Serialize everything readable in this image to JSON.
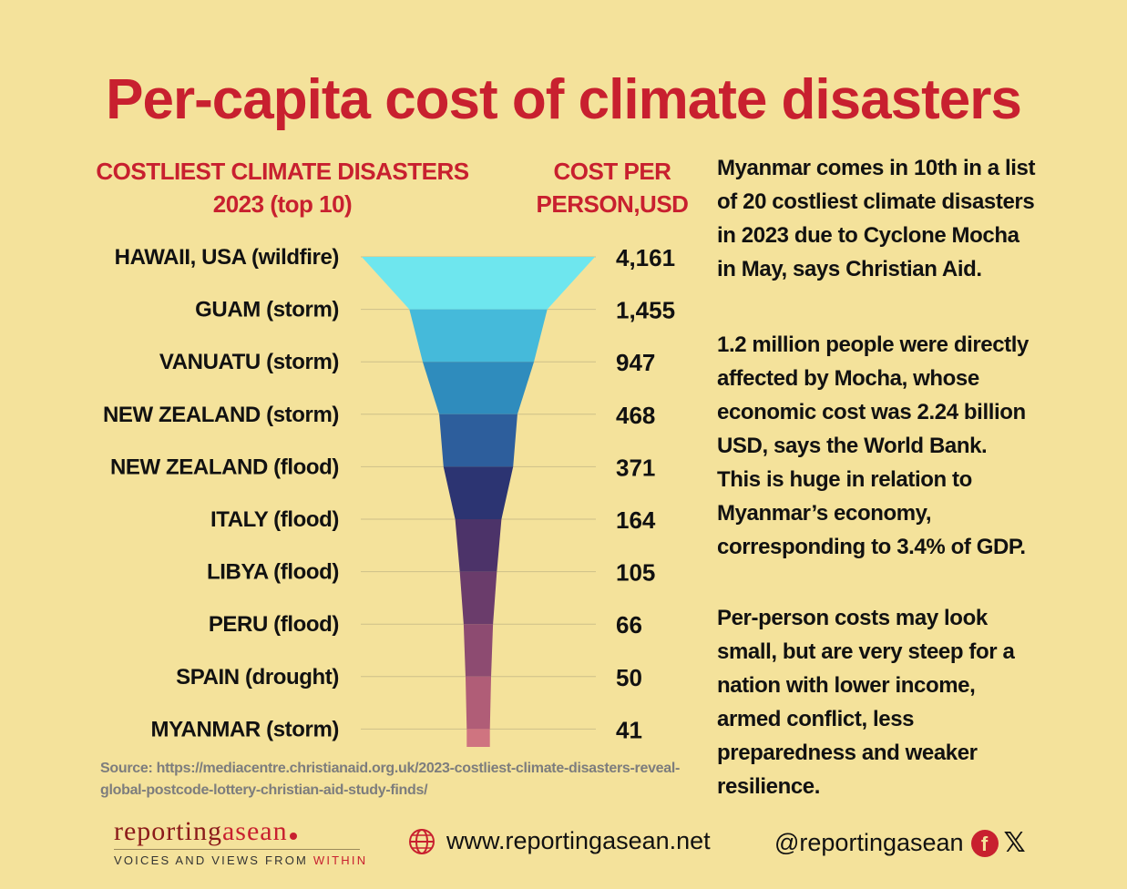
{
  "title": "Per-capita cost of climate disasters",
  "chart_data": {
    "type": "bar",
    "subtype": "funnel",
    "categories_header": "COSTLIEST CLIMATE DISASTERS 2023 (top 10)",
    "values_header": "COST PER PERSON,USD",
    "categories": [
      "HAWAII, USA (wildfire)",
      "GUAM (storm)",
      "VANUATU (storm)",
      "NEW ZEALAND (storm)",
      "NEW ZEALAND (flood)",
      "ITALY (flood)",
      "LIBYA (flood)",
      "PERU (flood)",
      "SPAIN (drought)",
      "MYANMAR (storm)"
    ],
    "values": [
      4161,
      1455,
      947,
      468,
      371,
      164,
      105,
      66,
      50,
      41
    ],
    "value_labels": [
      "4,161",
      "1,455",
      "947",
      "468",
      "371",
      "164",
      "105",
      "66",
      "50",
      "41"
    ],
    "colors": [
      "#6ee6ee",
      "#45bada",
      "#2f8cbd",
      "#2d5e9c",
      "#2c3472",
      "#4c3369",
      "#6a3c6b",
      "#8d4b71",
      "#b05d77",
      "#cf7480"
    ],
    "grid": true
  },
  "headers": {
    "left_line1": "COSTLIEST CLIMATE DISASTERS",
    "left_line2": "2023 (top 10)",
    "right_line1": "COST PER",
    "right_line2": "PERSON,USD"
  },
  "info": {
    "p1": "Myanmar comes in 10th in a list of 20 costliest climate disasters in 2023 due to Cyclone Mocha in May, says Christian Aid.",
    "p2": "1.2 million people were directly affected by Mocha, whose economic cost was 2.24 billion USD, says the World Bank. This is huge in relation to Myanmar’s economy, corresponding to 3.4% of GDP.",
    "p3": "Per-person costs may look small, but are very steep for a nation with lower income, armed conflict, less preparedness and weaker resilience."
  },
  "source": "Source: https://mediacentre.christianaid.org.uk/2023-costliest-climate-disasters-reveal-global-postcode-lottery-christian-aid-study-finds/",
  "footer": {
    "logo_part1": "reporting",
    "logo_part2": "asean",
    "tagline_part1": "VOICES AND VIEWS FROM ",
    "tagline_part2": "WITHIN",
    "website": "www.reportingasean.net",
    "handle": "@reportingasean",
    "social_icons": [
      "facebook-icon",
      "x-icon"
    ]
  }
}
